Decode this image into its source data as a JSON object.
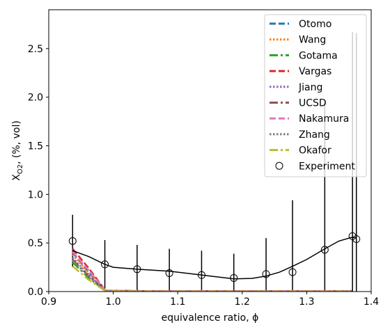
{
  "chart_data": {
    "type": "line",
    "title": "",
    "xlabel": "equivalence ratio, ϕ",
    "ylabel_main": "X",
    "ylabel_sub": "O2",
    "ylabel_rest": ", (%, vol)",
    "xlim": [
      0.9,
      1.4
    ],
    "ylim": [
      0.0,
      2.9
    ],
    "xticks": [
      0.9,
      1.0,
      1.1,
      1.2,
      1.3,
      1.4
    ],
    "xtick_labels": [
      "0.9",
      "1.0",
      "1.1",
      "1.2",
      "1.3",
      "1.4"
    ],
    "yticks": [
      0.0,
      0.5,
      1.0,
      1.5,
      2.0,
      2.5
    ],
    "ytick_labels": [
      "0.0",
      "0.5",
      "1.0",
      "1.5",
      "2.0",
      "2.5"
    ],
    "grid": false,
    "legend_position": "top-right",
    "series": [
      {
        "name": "Otomo",
        "color": "#1f77b4",
        "dash": "dashed",
        "x": [
          0.937,
          0.962,
          0.988,
          1.05,
          1.1,
          1.15,
          1.2,
          1.25,
          1.3,
          1.37
        ],
        "y": [
          0.4,
          0.2,
          0.01,
          0.005,
          0.005,
          0.005,
          0.005,
          0.005,
          0.005,
          0.005
        ]
      },
      {
        "name": "Wang",
        "color": "#ff7f0e",
        "dash": "dotted",
        "x": [
          0.937,
          0.962,
          0.988,
          1.05,
          1.1,
          1.15,
          1.2,
          1.25,
          1.3,
          1.37
        ],
        "y": [
          0.38,
          0.19,
          0.01,
          0.005,
          0.005,
          0.005,
          0.005,
          0.005,
          0.005,
          0.005
        ]
      },
      {
        "name": "Gotama",
        "color": "#2ca02c",
        "dash": "dashdot",
        "x": [
          0.937,
          0.962,
          0.988,
          1.05,
          1.1,
          1.15,
          1.2,
          1.25,
          1.3,
          1.37
        ],
        "y": [
          0.3,
          0.14,
          0.005,
          0.003,
          0.003,
          0.003,
          0.003,
          0.003,
          0.003,
          0.003
        ]
      },
      {
        "name": "Vargas",
        "color": "#d62728",
        "dash": "dashed",
        "x": [
          0.937,
          0.962,
          0.988,
          1.05,
          1.1,
          1.15,
          1.2,
          1.25,
          1.3,
          1.37
        ],
        "y": [
          0.44,
          0.24,
          0.01,
          0.005,
          0.005,
          0.005,
          0.005,
          0.005,
          0.005,
          0.005
        ]
      },
      {
        "name": "Jiang",
        "color": "#9467bd",
        "dash": "dotted",
        "x": [
          0.937,
          0.962,
          0.988,
          1.05,
          1.1,
          1.15,
          1.2,
          1.25,
          1.3,
          1.37
        ],
        "y": [
          0.35,
          0.17,
          0.008,
          0.004,
          0.004,
          0.004,
          0.004,
          0.004,
          0.004,
          0.004
        ]
      },
      {
        "name": "UCSD",
        "color": "#8c564b",
        "dash": "dashdot",
        "x": [
          0.937,
          0.962,
          0.988,
          1.05,
          1.1,
          1.15,
          1.2,
          1.25,
          1.3,
          1.37
        ],
        "y": [
          0.33,
          0.16,
          0.007,
          0.004,
          0.004,
          0.004,
          0.004,
          0.004,
          0.004,
          0.004
        ]
      },
      {
        "name": "Nakamura",
        "color": "#e377c2",
        "dash": "dashed",
        "x": [
          0.937,
          0.962,
          0.988,
          1.05,
          1.1,
          1.15,
          1.2,
          1.25,
          1.3,
          1.37
        ],
        "y": [
          0.41,
          0.22,
          0.01,
          0.005,
          0.005,
          0.005,
          0.005,
          0.005,
          0.005,
          0.005
        ]
      },
      {
        "name": "Zhang",
        "color": "#7f7f7f",
        "dash": "dotted",
        "x": [
          0.937,
          0.962,
          0.988,
          1.05,
          1.1,
          1.15,
          1.2,
          1.25,
          1.3,
          1.37
        ],
        "y": [
          0.32,
          0.15,
          0.006,
          0.003,
          0.003,
          0.003,
          0.003,
          0.003,
          0.003,
          0.003
        ]
      },
      {
        "name": "Okafor",
        "color": "#bcbd22",
        "dash": "dashdot",
        "x": [
          0.937,
          0.962,
          0.988,
          1.05,
          1.1,
          1.15,
          1.2,
          1.25,
          1.3,
          1.37
        ],
        "y": [
          0.26,
          0.12,
          0.004,
          0.002,
          0.002,
          0.002,
          0.002,
          0.002,
          0.002,
          0.002
        ]
      }
    ],
    "experiment": {
      "name": "Experiment",
      "x": [
        0.937,
        0.987,
        1.037,
        1.087,
        1.137,
        1.187,
        1.237,
        1.278,
        1.328,
        1.371,
        1.377
      ],
      "y": [
        0.52,
        0.28,
        0.23,
        0.19,
        0.17,
        0.14,
        0.18,
        0.2,
        0.43,
        0.57,
        0.54
      ],
      "yerr": [
        0.27,
        0.25,
        0.25,
        0.25,
        0.25,
        0.25,
        0.37,
        0.74,
        1.53,
        2.1,
        2.12
      ]
    },
    "experiment_fit": {
      "x": [
        0.937,
        0.962,
        0.987,
        1.0,
        1.037,
        1.087,
        1.137,
        1.187,
        1.215,
        1.237,
        1.258,
        1.278,
        1.3,
        1.328,
        1.35,
        1.371,
        1.377
      ],
      "y": [
        0.42,
        0.36,
        0.28,
        0.25,
        0.23,
        0.21,
        0.17,
        0.13,
        0.135,
        0.16,
        0.2,
        0.26,
        0.33,
        0.44,
        0.52,
        0.56,
        0.55
      ]
    }
  }
}
